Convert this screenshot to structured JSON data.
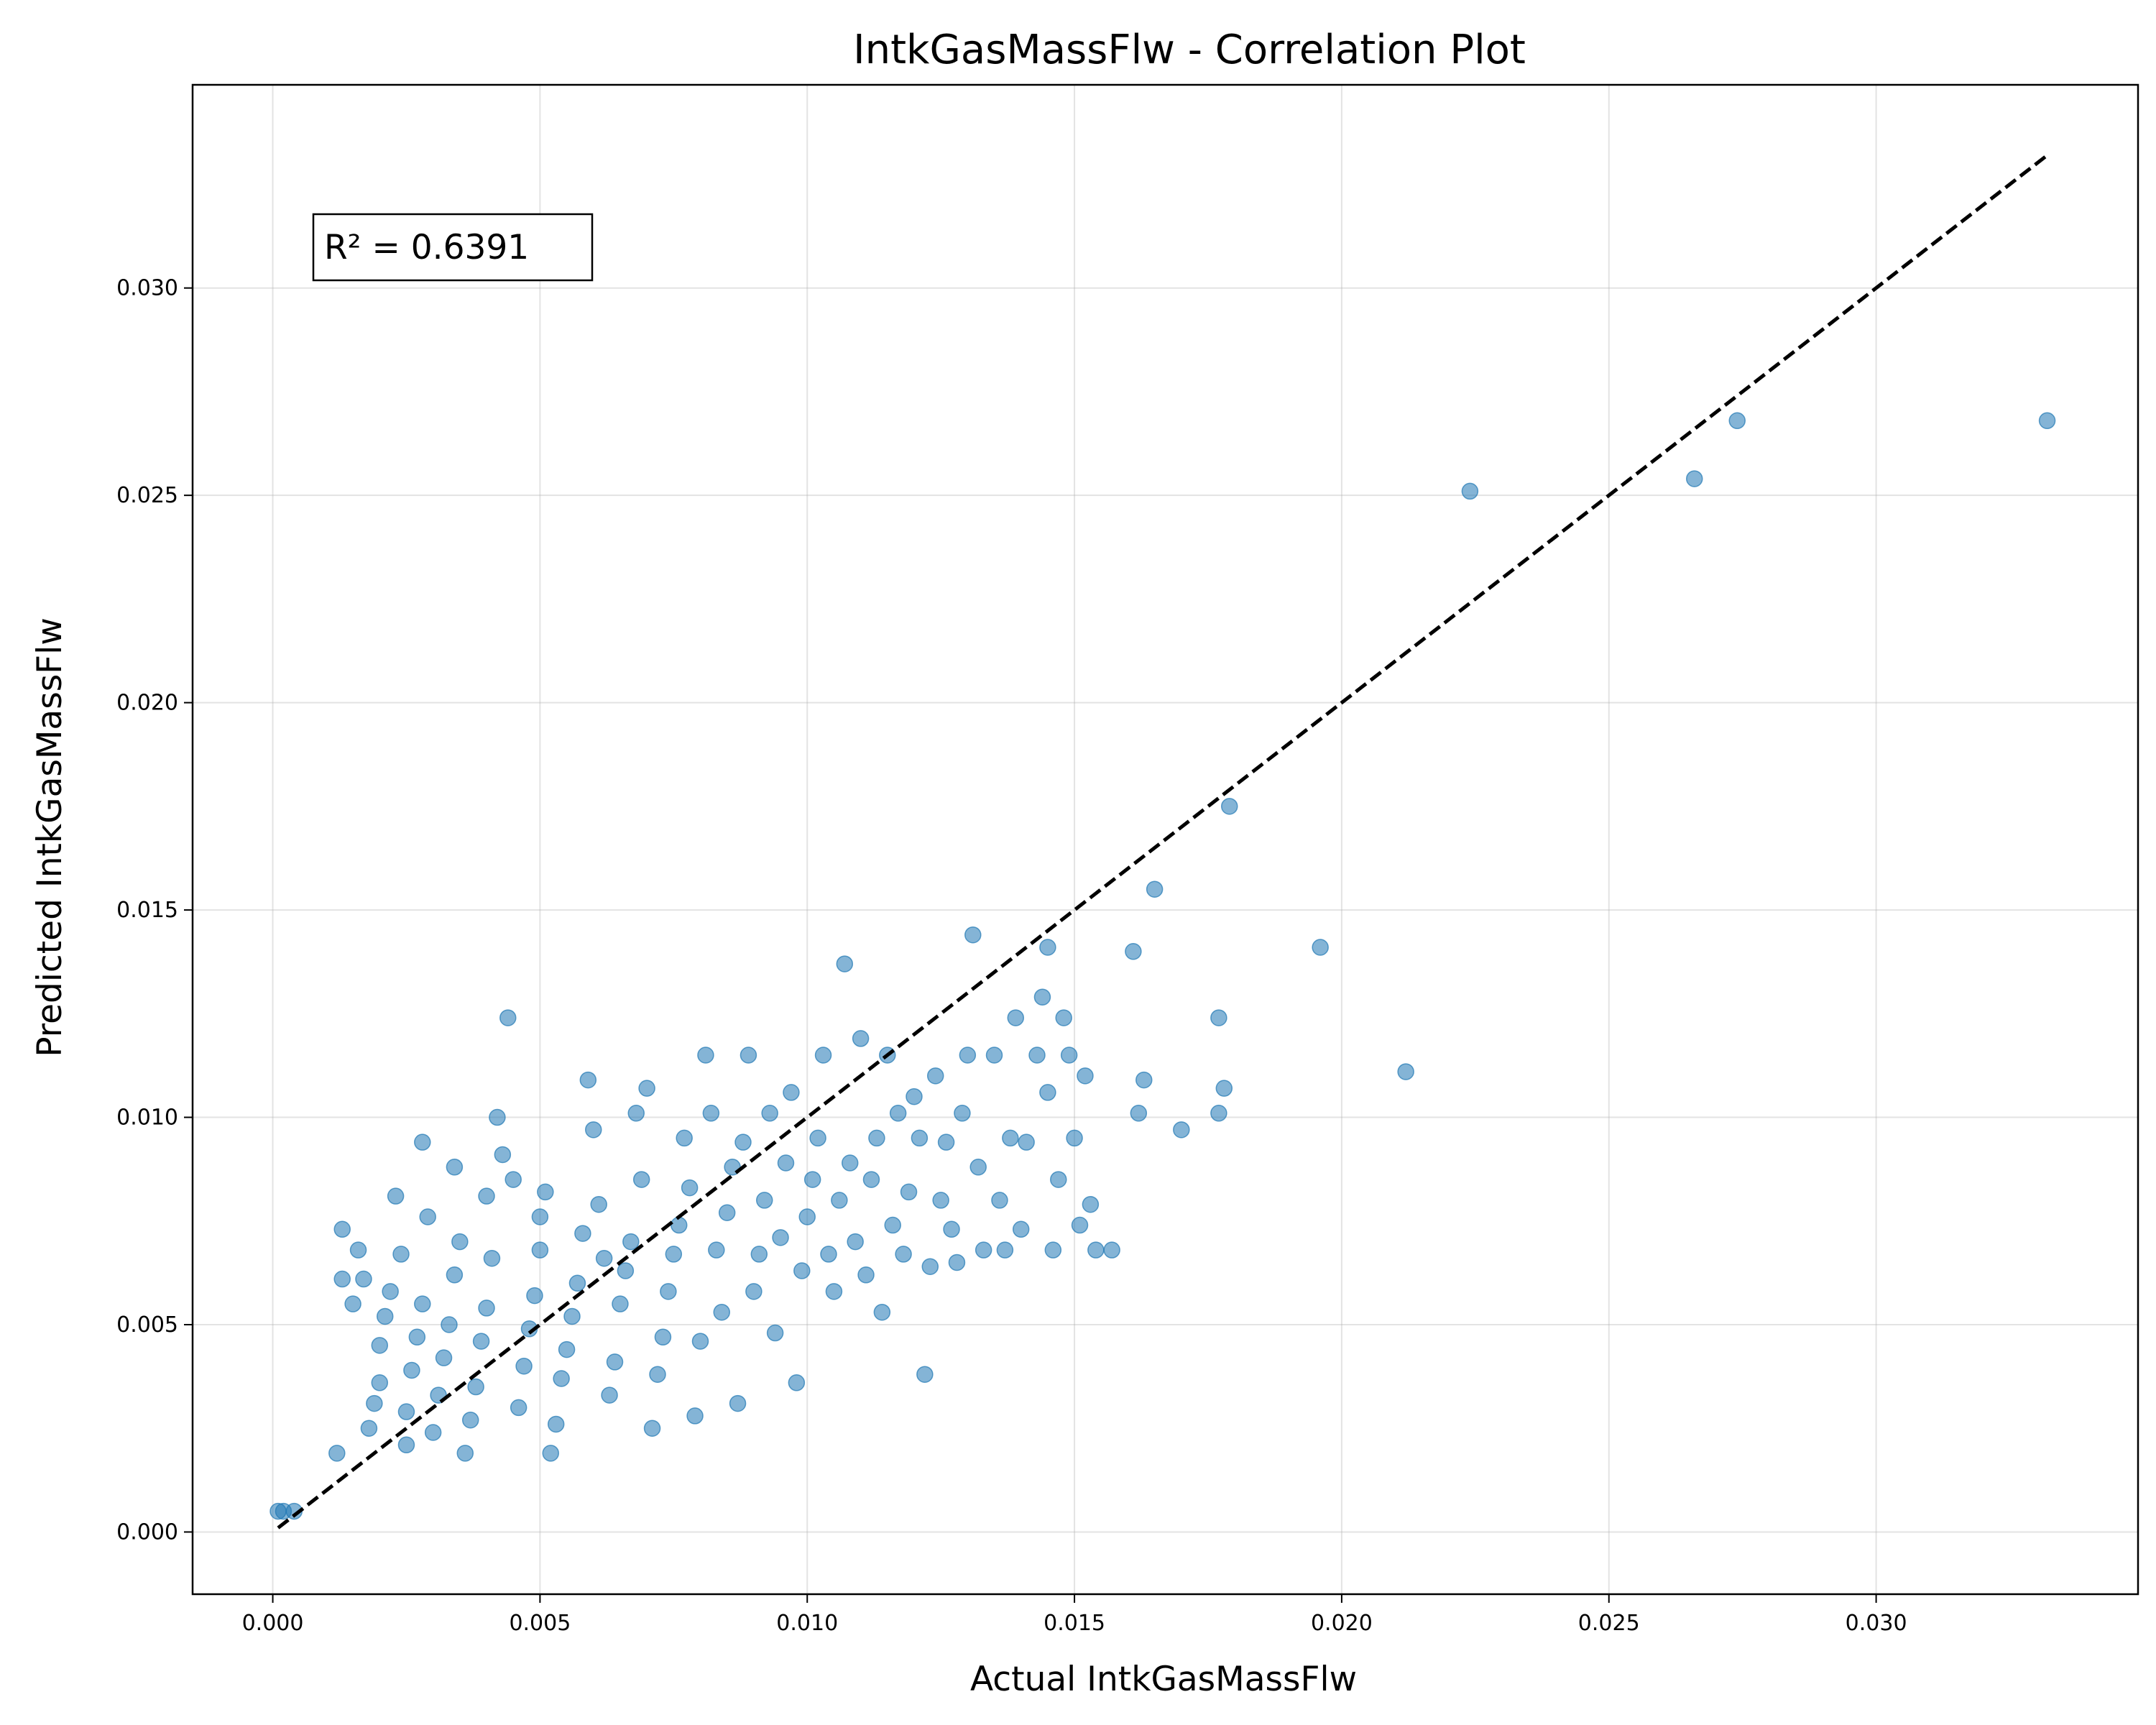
{
  "chart_data": {
    "type": "scatter",
    "title": "IntkGasMassFlw - Correlation Plot",
    "xlabel": "Actual IntkGasMassFlw",
    "ylabel": "Predicted IntkGasMassFlw",
    "xlim": [
      -0.0015,
      0.0349
    ],
    "ylim": [
      -0.0015,
      0.0349
    ],
    "xticks": [
      "0.000",
      "0.005",
      "0.010",
      "0.015",
      "0.020",
      "0.025",
      "0.030"
    ],
    "yticks": [
      "0.000",
      "0.005",
      "0.010",
      "0.015",
      "0.020",
      "0.025",
      "0.030"
    ],
    "grid": true,
    "annotation": "R² = 0.6391",
    "point_color": "#1f77b4",
    "reference_line": {
      "style": "dashed",
      "color": "#000000",
      "from": [
        0.0001,
        0.0001
      ],
      "to": [
        0.0332,
        0.0332
      ]
    },
    "series": [
      {
        "points": [
          [
            0.0001,
            0.0005
          ],
          [
            0.0002,
            0.0005
          ],
          [
            0.0004,
            0.0005
          ],
          [
            0.0012,
            0.0019
          ],
          [
            0.0013,
            0.0061
          ],
          [
            0.0013,
            0.0073
          ],
          [
            0.0015,
            0.0055
          ],
          [
            0.0016,
            0.0068
          ],
          [
            0.0017,
            0.0061
          ],
          [
            0.0018,
            0.0025
          ],
          [
            0.0019,
            0.0031
          ],
          [
            0.002,
            0.0036
          ],
          [
            0.002,
            0.0045
          ],
          [
            0.0021,
            0.0052
          ],
          [
            0.0022,
            0.0058
          ],
          [
            0.0023,
            0.0081
          ],
          [
            0.0024,
            0.0067
          ],
          [
            0.0025,
            0.0021
          ],
          [
            0.0025,
            0.0029
          ],
          [
            0.0026,
            0.0039
          ],
          [
            0.0027,
            0.0047
          ],
          [
            0.0028,
            0.0055
          ],
          [
            0.0028,
            0.0094
          ],
          [
            0.0029,
            0.0076
          ],
          [
            0.003,
            0.0024
          ],
          [
            0.0031,
            0.0033
          ],
          [
            0.0032,
            0.0042
          ],
          [
            0.0033,
            0.005
          ],
          [
            0.0034,
            0.0062
          ],
          [
            0.0034,
            0.0088
          ],
          [
            0.0035,
            0.007
          ],
          [
            0.0036,
            0.0019
          ],
          [
            0.0037,
            0.0027
          ],
          [
            0.0038,
            0.0035
          ],
          [
            0.0039,
            0.0046
          ],
          [
            0.004,
            0.0054
          ],
          [
            0.004,
            0.0081
          ],
          [
            0.0041,
            0.0066
          ],
          [
            0.0042,
            0.01
          ],
          [
            0.0043,
            0.0091
          ],
          [
            0.0044,
            0.0124
          ],
          [
            0.0045,
            0.0085
          ],
          [
            0.0046,
            0.003
          ],
          [
            0.0047,
            0.004
          ],
          [
            0.0048,
            0.0049
          ],
          [
            0.0049,
            0.0057
          ],
          [
            0.005,
            0.0068
          ],
          [
            0.005,
            0.0076
          ],
          [
            0.0051,
            0.0082
          ],
          [
            0.0052,
            0.0019
          ],
          [
            0.0053,
            0.0026
          ],
          [
            0.0054,
            0.0037
          ],
          [
            0.0055,
            0.0044
          ],
          [
            0.0056,
            0.0052
          ],
          [
            0.0057,
            0.006
          ],
          [
            0.0058,
            0.0072
          ],
          [
            0.0059,
            0.0109
          ],
          [
            0.006,
            0.0097
          ],
          [
            0.0061,
            0.0079
          ],
          [
            0.0062,
            0.0066
          ],
          [
            0.0063,
            0.0033
          ],
          [
            0.0064,
            0.0041
          ],
          [
            0.0065,
            0.0055
          ],
          [
            0.0066,
            0.0063
          ],
          [
            0.0067,
            0.007
          ],
          [
            0.0068,
            0.0101
          ],
          [
            0.0069,
            0.0085
          ],
          [
            0.007,
            0.0107
          ],
          [
            0.0071,
            0.0025
          ],
          [
            0.0072,
            0.0038
          ],
          [
            0.0073,
            0.0047
          ],
          [
            0.0074,
            0.0058
          ],
          [
            0.0075,
            0.0067
          ],
          [
            0.0076,
            0.0074
          ],
          [
            0.0077,
            0.0095
          ],
          [
            0.0078,
            0.0083
          ],
          [
            0.0079,
            0.0028
          ],
          [
            0.008,
            0.0046
          ],
          [
            0.0081,
            0.0115
          ],
          [
            0.0082,
            0.0101
          ],
          [
            0.0083,
            0.0068
          ],
          [
            0.0084,
            0.0053
          ],
          [
            0.0085,
            0.0077
          ],
          [
            0.0086,
            0.0088
          ],
          [
            0.0087,
            0.0031
          ],
          [
            0.0088,
            0.0094
          ],
          [
            0.0089,
            0.0115
          ],
          [
            0.009,
            0.0058
          ],
          [
            0.0091,
            0.0067
          ],
          [
            0.0092,
            0.008
          ],
          [
            0.0093,
            0.0101
          ],
          [
            0.0094,
            0.0048
          ],
          [
            0.0095,
            0.0071
          ],
          [
            0.0096,
            0.0089
          ],
          [
            0.0097,
            0.0106
          ],
          [
            0.0098,
            0.0036
          ],
          [
            0.0099,
            0.0063
          ],
          [
            0.01,
            0.0076
          ],
          [
            0.0101,
            0.0085
          ],
          [
            0.0102,
            0.0095
          ],
          [
            0.0103,
            0.0115
          ],
          [
            0.0104,
            0.0067
          ],
          [
            0.0105,
            0.0058
          ],
          [
            0.0106,
            0.008
          ],
          [
            0.0107,
            0.0137
          ],
          [
            0.0108,
            0.0089
          ],
          [
            0.0109,
            0.007
          ],
          [
            0.011,
            0.0119
          ],
          [
            0.0111,
            0.0062
          ],
          [
            0.0112,
            0.0085
          ],
          [
            0.0113,
            0.0095
          ],
          [
            0.0114,
            0.0053
          ],
          [
            0.0115,
            0.0115
          ],
          [
            0.0116,
            0.0074
          ],
          [
            0.0117,
            0.0101
          ],
          [
            0.0118,
            0.0067
          ],
          [
            0.0119,
            0.0082
          ],
          [
            0.012,
            0.0105
          ],
          [
            0.0121,
            0.0095
          ],
          [
            0.0122,
            0.0038
          ],
          [
            0.0123,
            0.0064
          ],
          [
            0.0124,
            0.011
          ],
          [
            0.0125,
            0.008
          ],
          [
            0.0126,
            0.0094
          ],
          [
            0.0127,
            0.0073
          ],
          [
            0.0128,
            0.0065
          ],
          [
            0.0129,
            0.0101
          ],
          [
            0.013,
            0.0115
          ],
          [
            0.0131,
            0.0144
          ],
          [
            0.0132,
            0.0088
          ],
          [
            0.0133,
            0.0068
          ],
          [
            0.0135,
            0.0115
          ],
          [
            0.0136,
            0.008
          ],
          [
            0.0137,
            0.0068
          ],
          [
            0.0138,
            0.0095
          ],
          [
            0.0139,
            0.0124
          ],
          [
            0.014,
            0.0073
          ],
          [
            0.0141,
            0.0094
          ],
          [
            0.0143,
            0.0115
          ],
          [
            0.0144,
            0.0129
          ],
          [
            0.0145,
            0.0106
          ],
          [
            0.0145,
            0.0141
          ],
          [
            0.0146,
            0.0068
          ],
          [
            0.0147,
            0.0085
          ],
          [
            0.0148,
            0.0124
          ],
          [
            0.0149,
            0.0115
          ],
          [
            0.015,
            0.0095
          ],
          [
            0.0151,
            0.0074
          ],
          [
            0.0152,
            0.011
          ],
          [
            0.0153,
            0.0079
          ],
          [
            0.0154,
            0.0068
          ],
          [
            0.0157,
            0.0068
          ],
          [
            0.0161,
            0.014
          ],
          [
            0.0162,
            0.0101
          ],
          [
            0.0163,
            0.0109
          ],
          [
            0.0165,
            0.0155
          ],
          [
            0.017,
            0.0097
          ],
          [
            0.0177,
            0.0124
          ],
          [
            0.0177,
            0.0101
          ],
          [
            0.0178,
            0.0107
          ],
          [
            0.0179,
            0.0175
          ],
          [
            0.0196,
            0.0141
          ],
          [
            0.0212,
            0.0111
          ],
          [
            0.0224,
            0.0251
          ],
          [
            0.0266,
            0.0254
          ],
          [
            0.0274,
            0.0268
          ],
          [
            0.0332,
            0.0268
          ]
        ]
      }
    ]
  }
}
